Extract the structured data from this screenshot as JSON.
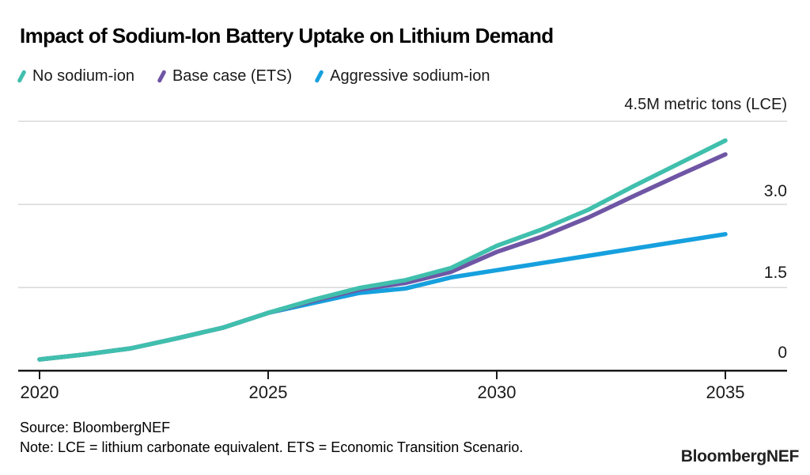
{
  "title": "Impact of Sodium-Ion Battery Uptake on Lithium Demand",
  "legend": [
    {
      "label": "No sodium-ion",
      "color": "#40bfad"
    },
    {
      "label": "Base case (ETS)",
      "color": "#6f56a5"
    },
    {
      "label": "Aggressive sodium-ion",
      "color": "#16a0de"
    }
  ],
  "axis": {
    "unit_label": "4.5M metric tons (LCE)",
    "y_ticks": [
      "3.0",
      "1.5",
      "0"
    ],
    "x_ticks": [
      "2020",
      "2025",
      "2030",
      "2035"
    ]
  },
  "footer": {
    "source": "Source: BloombergNEF",
    "note": "Note: LCE = lithium carbonate equivalent. ETS = Economic Transition Scenario.",
    "logo": "BloombergNEF"
  },
  "colors": {
    "gridline": "#d9d9d9",
    "axis": "#1a1a1a",
    "background": "#ffffff"
  },
  "chart_data": {
    "type": "line",
    "title": "Impact of Sodium-Ion Battery Uptake on Lithium Demand",
    "ylabel": "4.5M metric tons (LCE)",
    "ylim": [
      0,
      4.5
    ],
    "y_gridline_values": [
      1.5,
      3.0,
      4.5
    ],
    "y_tick_label_values": [
      3.0,
      1.5,
      0
    ],
    "x_tick_years": [
      2020,
      2025,
      2030,
      2035
    ],
    "grid": "horizontal-only",
    "legend_position": "top-left",
    "x": [
      2020,
      2021,
      2022,
      2023,
      2024,
      2025,
      2026,
      2027,
      2028,
      2029,
      2030,
      2031,
      2032,
      2033,
      2034,
      2035
    ],
    "series": [
      {
        "name": "Aggressive sodium-ion",
        "color": "#16a0de",
        "values": [
          0.2,
          0.29,
          0.4,
          0.58,
          0.77,
          1.04,
          1.22,
          1.4,
          1.48,
          1.68,
          1.81,
          1.94,
          2.07,
          2.2,
          2.33,
          2.46
        ]
      },
      {
        "name": "Base case (ETS)",
        "color": "#6f56a5",
        "values": [
          0.2,
          0.29,
          0.4,
          0.58,
          0.77,
          1.04,
          1.26,
          1.46,
          1.58,
          1.78,
          2.14,
          2.42,
          2.76,
          3.15,
          3.53,
          3.9
        ]
      },
      {
        "name": "No sodium-ion",
        "color": "#40bfad",
        "values": [
          0.2,
          0.29,
          0.4,
          0.58,
          0.77,
          1.04,
          1.28,
          1.49,
          1.63,
          1.85,
          2.25,
          2.55,
          2.9,
          3.33,
          3.74,
          4.15
        ]
      }
    ]
  }
}
